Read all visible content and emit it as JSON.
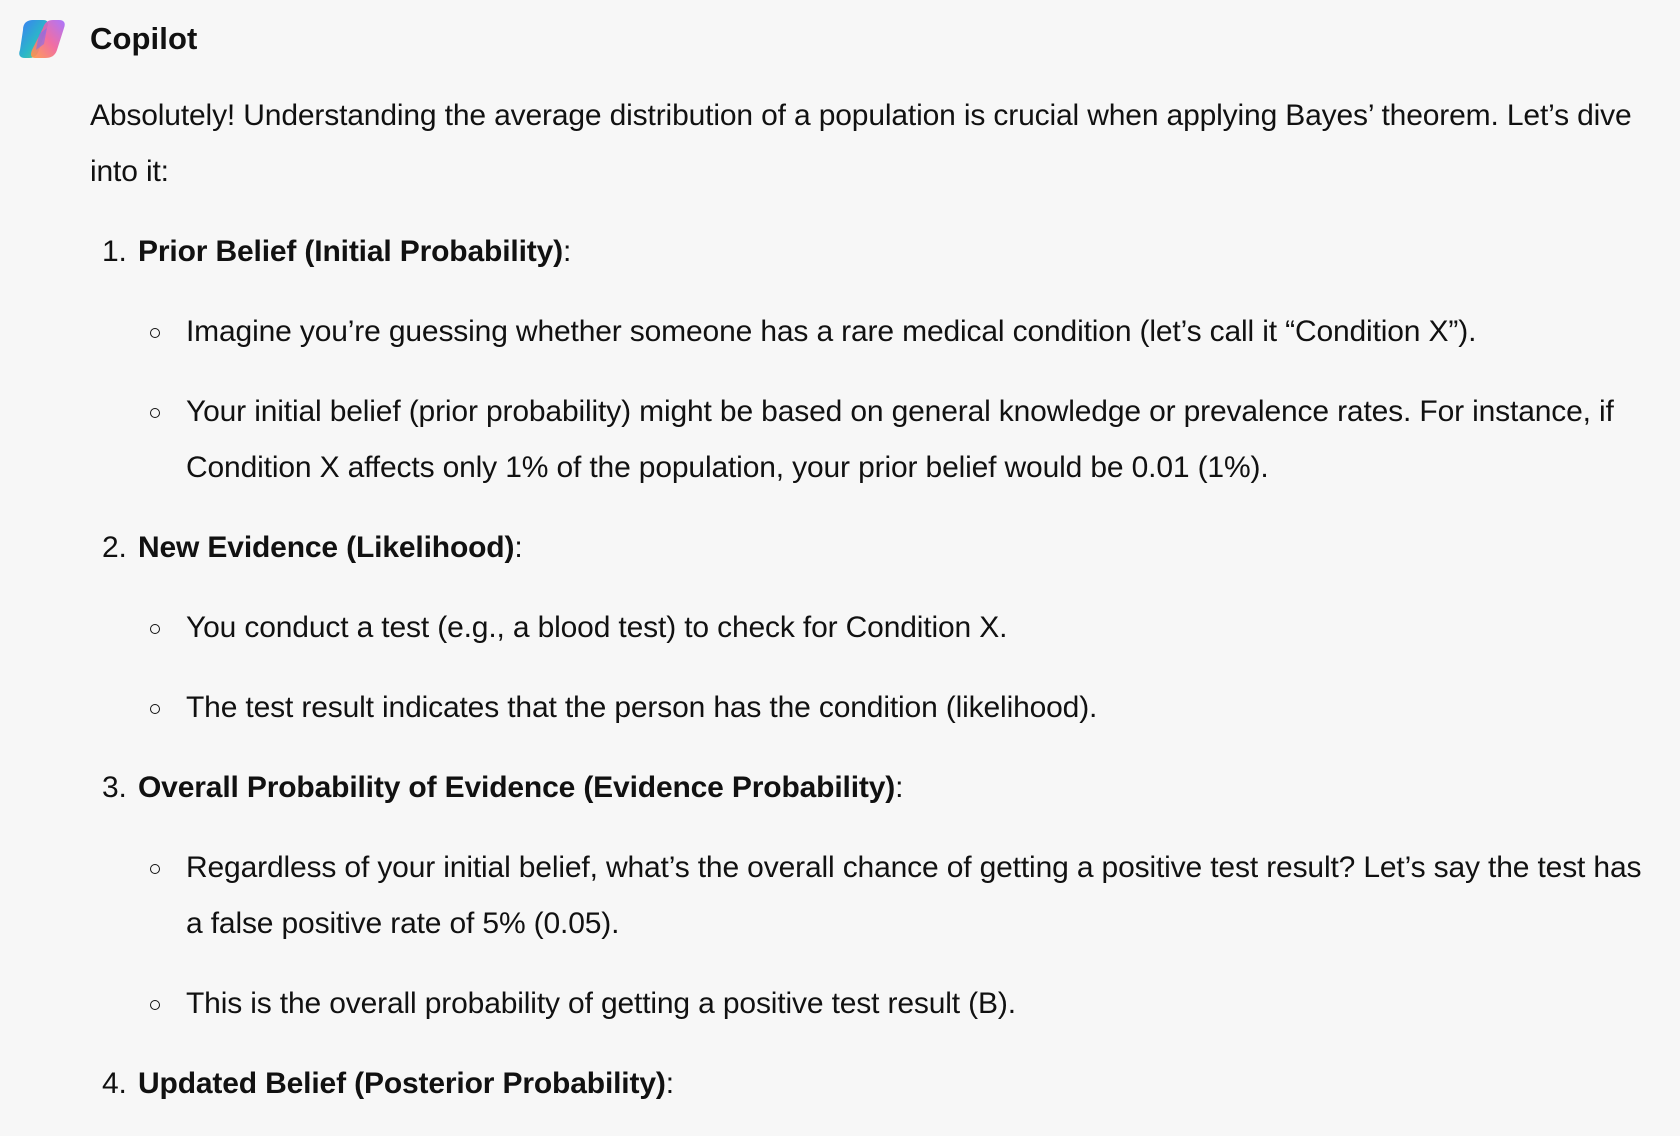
{
  "assistant": {
    "name": "Copilot",
    "icon": "copilot-logo-icon"
  },
  "message": {
    "intro": "Absolutely! Understanding the average distribution of a population is crucial when applying Bayes’ theorem. Let’s dive into it:",
    "steps": [
      {
        "number": "1.",
        "title": "Prior Belief (Initial Probability)",
        "suffix": ":",
        "bullets": [
          "Imagine you’re guessing whether someone has a rare medical condition (let’s call it “Condition X”).",
          "Your initial belief (prior probability) might be based on general knowledge or prevalence rates. For instance, if Condition X affects only 1% of the population, your prior belief would be 0.01 (1%)."
        ]
      },
      {
        "number": "2.",
        "title": "New Evidence (Likelihood)",
        "suffix": ":",
        "bullets": [
          "You conduct a test (e.g., a blood test) to check for Condition X.",
          "The test result indicates that the person has the condition (likelihood)."
        ]
      },
      {
        "number": "3.",
        "title": "Overall Probability of Evidence (Evidence Probability)",
        "suffix": ":",
        "bullets": [
          "Regardless of your initial belief, what’s the overall chance of getting a positive test result? Let’s say the test has a false positive rate of 5% (0.05).",
          "This is the overall probability of getting a positive test result (B)."
        ]
      },
      {
        "number": "4.",
        "title": "Updated Belief (Posterior Probability)",
        "suffix": ":",
        "bullets": []
      }
    ]
  }
}
